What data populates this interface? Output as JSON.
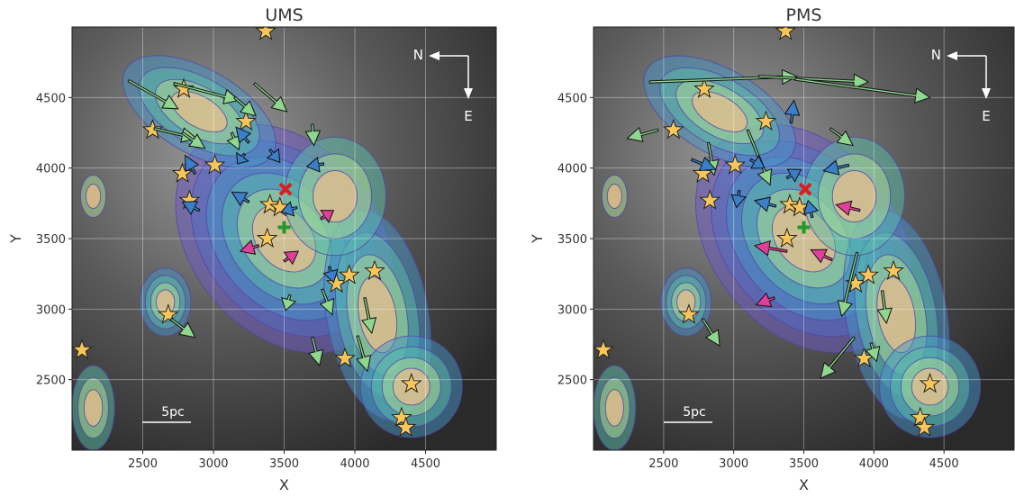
{
  "chart_data": [
    {
      "type": "quiver",
      "title": "UMS",
      "xlabel": "X",
      "ylabel": "Y",
      "xlim": [
        2000,
        5000
      ],
      "ylim": [
        2000,
        5000
      ],
      "xticks": [
        2500,
        3000,
        3500,
        4000,
        4500
      ],
      "yticks": [
        2500,
        3000,
        3500,
        4000,
        4500
      ],
      "grid": true,
      "scale_bar": "5pc",
      "compass": [
        "N",
        "E"
      ],
      "stars": {
        "color": "#f6c65b",
        "x": [
          2070,
          2680,
          2790,
          2570,
          2780,
          2830,
          3010,
          3230,
          3370,
          3380,
          3400,
          3470,
          3870,
          3960,
          4140,
          3930,
          4400,
          4330,
          4360
        ],
        "y": [
          2710,
          2960,
          4560,
          4270,
          3960,
          3770,
          4020,
          4330,
          4970,
          3500,
          3740,
          3720,
          3180,
          3240,
          3270,
          2650,
          2470,
          2230,
          2160
        ]
      },
      "cross": {
        "x": 3510,
        "y": 3850,
        "color": "#e01b1b"
      },
      "plus": {
        "x": 3500,
        "y": 3580,
        "color": "#1f9a2e"
      },
      "series": [
        {
          "color": "#8fd68f",
          "x_start": [
            2400,
            2720,
            2580,
            2780,
            3150,
            3290,
            3130,
            3700,
            3540,
            3770,
            4070,
            2700,
            3700,
            4020
          ],
          "y_start": [
            4620,
            4600,
            4280,
            4250,
            4500,
            4600,
            4250,
            4310,
            3100,
            3140,
            3080,
            2930,
            2800,
            2810
          ],
          "x_end": [
            2750,
            3180,
            2880,
            2940,
            3300,
            3520,
            3180,
            3710,
            3510,
            3840,
            4120,
            2870,
            3750,
            4090
          ],
          "y_end": [
            4420,
            4480,
            4210,
            4140,
            4370,
            4400,
            4130,
            4160,
            2990,
            2960,
            2830,
            2800,
            2600,
            2560
          ]
        },
        {
          "color": "#3a7fc8",
          "x_start": [
            3250,
            3220,
            3780,
            2870,
            2900,
            3250,
            3590,
            3820,
            3400
          ],
          "y_start": [
            4180,
            4100,
            4030,
            3960,
            3700,
            3760,
            3720,
            3300,
            4130
          ],
          "x_end": [
            3160,
            3170,
            3660,
            2800,
            2780,
            3130,
            3480,
            3850,
            3470
          ],
          "y_end": [
            4290,
            4030,
            4010,
            4090,
            3760,
            3830,
            3690,
            3190,
            4040
          ]
        },
        {
          "color": "#e0409a",
          "x_start": [
            3760,
            3320,
            3500
          ],
          "y_start": [
            3640,
            3450,
            3340
          ],
          "x_end": [
            3850,
            3190,
            3600
          ],
          "y_end": [
            3700,
            3410,
            3410
          ]
        }
      ]
    },
    {
      "type": "quiver",
      "title": "PMS",
      "xlabel": "X",
      "ylabel": "Y",
      "xlim": [
        2000,
        5000
      ],
      "ylim": [
        2000,
        5000
      ],
      "xticks": [
        2500,
        3000,
        3500,
        4000,
        4500
      ],
      "yticks": [
        2500,
        3000,
        3500,
        4000,
        4500
      ],
      "grid": true,
      "scale_bar": "5pc",
      "compass": [
        "N",
        "E"
      ],
      "stars": {
        "color": "#f6c65b",
        "x": [
          2070,
          2680,
          2790,
          2570,
          2780,
          2830,
          3010,
          3230,
          3370,
          3380,
          3400,
          3470,
          3870,
          3960,
          4140,
          3930,
          4400,
          4330,
          4360
        ],
        "y": [
          2710,
          2960,
          4560,
          4270,
          3960,
          3770,
          4020,
          4330,
          4970,
          3500,
          3740,
          3720,
          3180,
          3240,
          3270,
          2650,
          2470,
          2230,
          2160
        ]
      },
      "cross": {
        "x": 3510,
        "y": 3850,
        "color": "#e01b1b"
      },
      "plus": {
        "x": 3500,
        "y": 3580,
        "color": "#1f9a2e"
      },
      "series": [
        {
          "color": "#8fd68f",
          "x_start": [
            2400,
            3180,
            3440,
            2460,
            2820,
            3100,
            3690,
            3880,
            4060,
            2780,
            3860,
            3980
          ],
          "y_start": [
            4610,
            4650,
            4630,
            4270,
            4180,
            4270,
            4280,
            3400,
            3130,
            2930,
            2800,
            2760
          ],
          "x_end": [
            3450,
            3960,
            4400,
            2240,
            2860,
            3260,
            3850,
            3770,
            4090,
            2900,
            3620,
            4020
          ],
          "y_end": [
            4650,
            4610,
            4500,
            4210,
            3950,
            3880,
            4160,
            2950,
            2900,
            2740,
            2510,
            2630
          ]
        },
        {
          "color": "#3a7fc8",
          "x_start": [
            3410,
            2700,
            3040,
            3120,
            3380,
            3820,
            3300,
            3560
          ],
          "y_start": [
            4320,
            4060,
            3840,
            4060,
            3930,
            4020,
            3730,
            3650
          ],
          "x_end": [
            3430,
            2870,
            3020,
            3220,
            3480,
            3640,
            3150,
            3530
          ],
          "y_end": [
            4480,
            3990,
            3720,
            4000,
            3990,
            3980,
            3770,
            3770
          ]
        },
        {
          "color": "#e0409a",
          "x_start": [
            3900,
            3380,
            3700,
            3290
          ],
          "y_start": [
            3700,
            3410,
            3350,
            3080
          ],
          "x_end": [
            3730,
            3150,
            3550,
            3160
          ],
          "y_end": [
            3740,
            3450,
            3420,
            3030
          ]
        }
      ]
    }
  ]
}
